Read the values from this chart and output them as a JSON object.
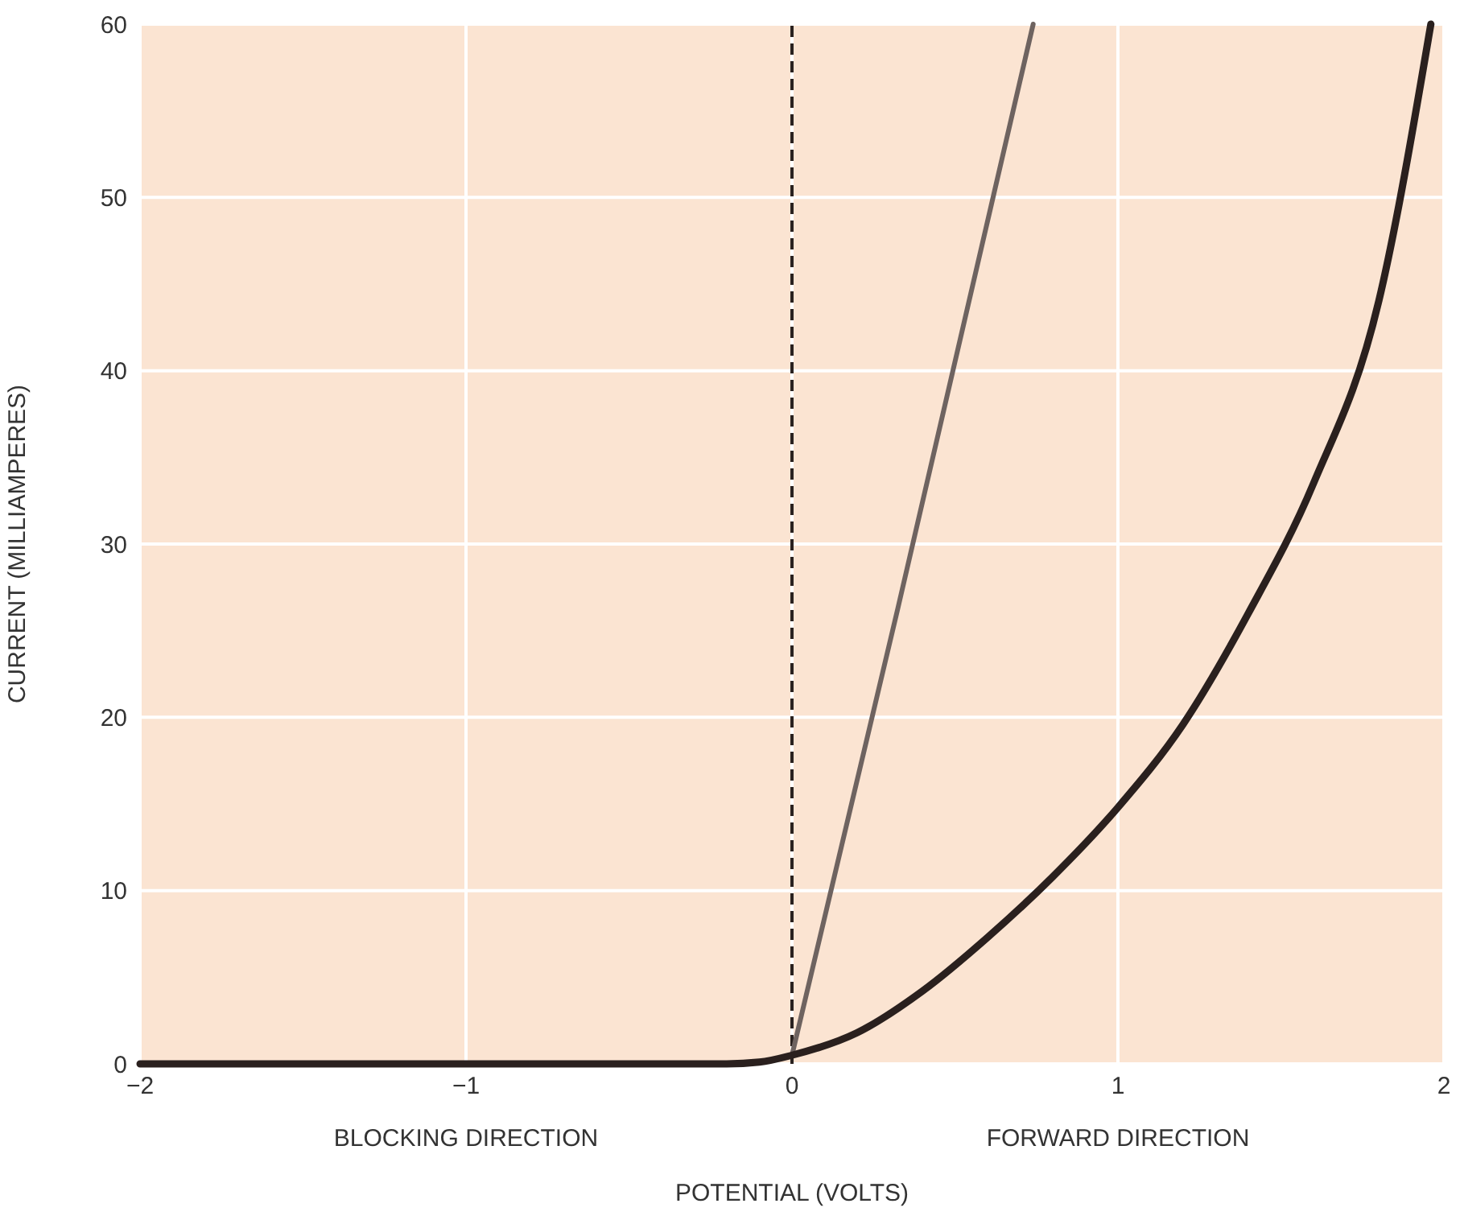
{
  "chart_data": {
    "type": "line",
    "xlabel": "POTENTIAL (VOLTS)",
    "ylabel": "CURRENT (MILLIAMPERES)",
    "annotations": [
      "BLOCKING DIRECTION",
      "FORWARD DIRECTION"
    ],
    "xlim": [
      -2,
      2
    ],
    "xticks": [
      {
        "value": -2,
        "label": "−2"
      },
      {
        "value": -1,
        "label": "−1"
      },
      0,
      1,
      2
    ],
    "ylim": [
      0,
      60
    ],
    "yticks": [
      0,
      10,
      20,
      30,
      40,
      50,
      60
    ],
    "grid": true,
    "marker": "none",
    "line_style": "solid",
    "ref_lines": [
      {
        "axis": "x",
        "value": 0,
        "label": null,
        "color": "#2a2220",
        "line_style": "dashed"
      }
    ],
    "series": [
      {
        "color": "#6e6360",
        "x": [
          0,
          0.325,
          0.74
        ],
        "values": [
          0.5,
          26.3,
          60
        ]
      },
      {
        "color": "#2a201e",
        "x": [
          -2,
          -1,
          -0.2,
          -0.1,
          0,
          0.2,
          0.4,
          0.6,
          0.8,
          1,
          1.2,
          1.4,
          1.6,
          1.8,
          1.96
        ],
        "values": [
          0,
          0,
          0,
          0.1,
          0.5,
          1.8,
          4.2,
          7.3,
          10.8,
          14.8,
          19.6,
          26,
          33.5,
          44,
          60
        ]
      }
    ]
  }
}
